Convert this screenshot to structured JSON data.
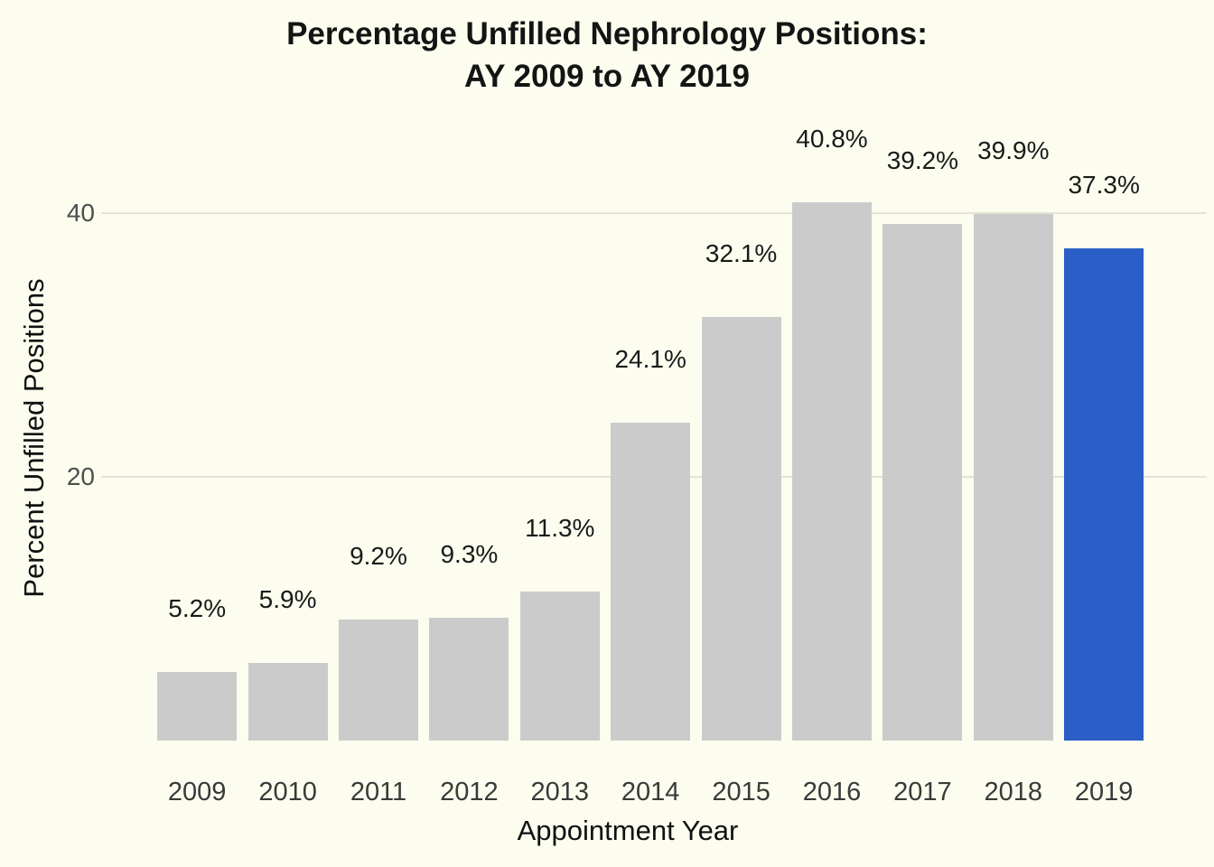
{
  "title": {
    "line1": "Percentage Unfilled Nephrology Positions:",
    "line2": "AY 2009 to AY 2019"
  },
  "chart_data": {
    "type": "bar",
    "title": "Percentage Unfilled Nephrology Positions: AY 2009 to AY 2019",
    "categories": [
      "2009",
      "2010",
      "2011",
      "2012",
      "2013",
      "2014",
      "2015",
      "2016",
      "2017",
      "2018",
      "2019"
    ],
    "values": [
      5.2,
      5.9,
      9.2,
      9.3,
      11.3,
      24.1,
      32.1,
      40.8,
      39.2,
      39.9,
      37.3
    ],
    "value_labels": [
      "5.2%",
      "5.9%",
      "9.2%",
      "9.3%",
      "11.3%",
      "24.1%",
      "32.1%",
      "40.8%",
      "39.2%",
      "39.9%",
      "37.3%"
    ],
    "xlabel": "Appointment Year",
    "ylabel": "Percent Unfilled Positions",
    "yticks": [
      20,
      40
    ],
    "ylim": [
      0,
      45
    ],
    "grid": "horizontal",
    "legend": "none",
    "bar_color": "#cbcbcb",
    "highlight_index": 10,
    "highlight_color": "#2b5fc7",
    "background_color": "#fcfcef"
  }
}
